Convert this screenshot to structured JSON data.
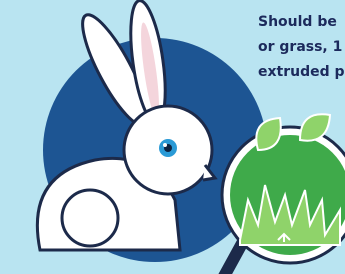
{
  "text": {
    "lines": [
      "Should be",
      "or grass, 1",
      "extruded p"
    ]
  }
}
